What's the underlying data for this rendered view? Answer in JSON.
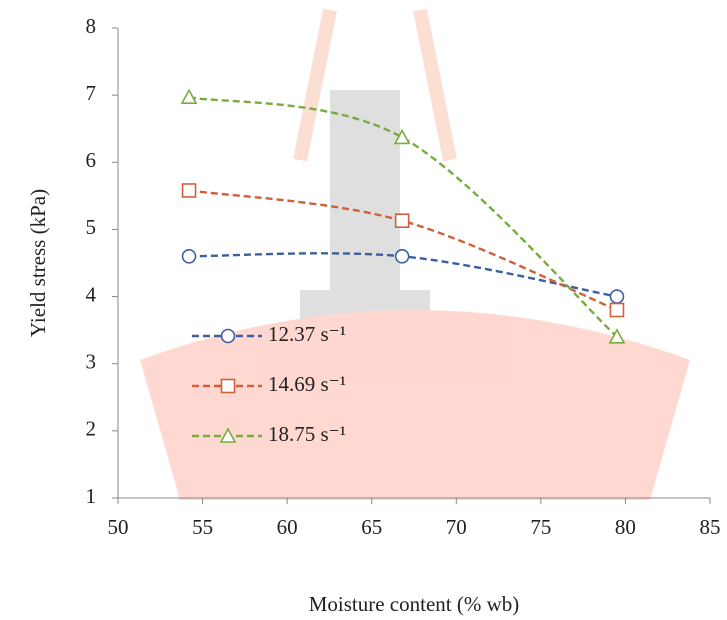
{
  "chart_data": {
    "type": "line",
    "xlabel": "Moisture content (% wb)",
    "ylabel": "Yield stress (kPa)",
    "x": [
      54.2,
      66.8,
      79.5
    ],
    "series": [
      {
        "name": "12.37 s⁻¹",
        "color": "#3d5fa0",
        "marker": "circle",
        "values": [
          4.6,
          4.6,
          4.0
        ]
      },
      {
        "name": "14.69 s⁻¹",
        "color": "#d0603a",
        "marker": "square",
        "values": [
          5.58,
          5.13,
          3.8
        ]
      },
      {
        "name": "18.75 s⁻¹",
        "color": "#7aab3e",
        "marker": "triangle",
        "values": [
          6.97,
          6.37,
          3.4
        ]
      }
    ],
    "xlim": [
      50,
      85
    ],
    "xticks": [
      50,
      55,
      60,
      65,
      70,
      75,
      80,
      85
    ],
    "ylim": [
      1,
      8
    ],
    "yticks": [
      1,
      2,
      3,
      4,
      5,
      6,
      7,
      8
    ],
    "smooth": true,
    "dashed": true,
    "legend": "left"
  }
}
